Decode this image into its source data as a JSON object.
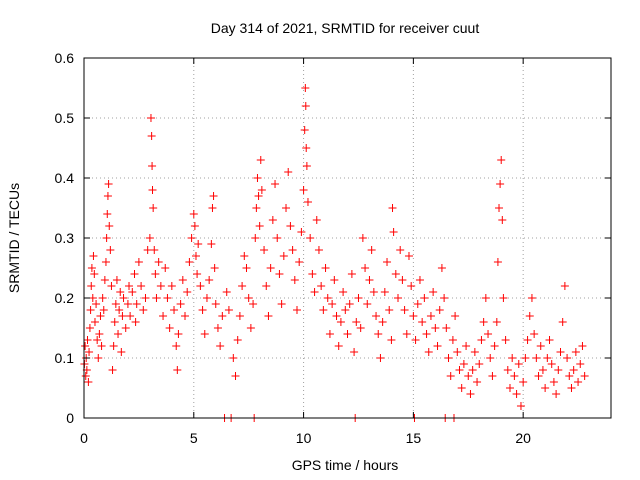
{
  "chart_data": {
    "type": "scatter",
    "title": "Day 314 of 2021, SRMTID for receiver cuut",
    "xlabel": "GPS time / hours",
    "ylabel": "SRMTID / TECUs",
    "xlim": [
      0,
      24
    ],
    "ylim": [
      0,
      0.6
    ],
    "xticks": [
      0,
      5,
      10,
      15,
      20
    ],
    "yticks": [
      0,
      0.1,
      0.2,
      0.3,
      0.4,
      0.5,
      0.6
    ],
    "xtick_labels": [
      "0",
      "5",
      "10",
      "15",
      "20"
    ],
    "ytick_labels": [
      "0",
      "0.1",
      "0.2",
      "0.3",
      "0.4",
      "0.5",
      "0.6"
    ],
    "grid": true,
    "marker": "+",
    "series_color": "#ff0000",
    "series": [
      {
        "name": "SRMTID",
        "points": [
          [
            0.02,
            0.09
          ],
          [
            0.05,
            0.12
          ],
          [
            0.08,
            0.07
          ],
          [
            0.1,
            0.1
          ],
          [
            0.13,
            0.08
          ],
          [
            0.16,
            0.13
          ],
          [
            0.2,
            0.06
          ],
          [
            0.23,
            0.11
          ],
          [
            0.27,
            0.15
          ],
          [
            0.3,
            0.18
          ],
          [
            0.33,
            0.22
          ],
          [
            0.36,
            0.25
          ],
          [
            0.4,
            0.2
          ],
          [
            0.43,
            0.27
          ],
          [
            0.47,
            0.24
          ],
          [
            0.5,
            0.16
          ],
          [
            0.55,
            0.19
          ],
          [
            0.6,
            0.13
          ],
          [
            0.65,
            0.1
          ],
          [
            0.7,
            0.14
          ],
          [
            0.75,
            0.17
          ],
          [
            0.8,
            0.12
          ],
          [
            0.85,
            0.2
          ],
          [
            0.9,
            0.18
          ],
          [
            0.95,
            0.23
          ],
          [
            1.0,
            0.26
          ],
          [
            1.03,
            0.3
          ],
          [
            1.06,
            0.34
          ],
          [
            1.09,
            0.37
          ],
          [
            1.12,
            0.39
          ],
          [
            1.15,
            0.32
          ],
          [
            1.2,
            0.28
          ],
          [
            1.25,
            0.22
          ],
          [
            1.3,
            0.08
          ],
          [
            1.35,
            0.12
          ],
          [
            1.4,
            0.16
          ],
          [
            1.45,
            0.19
          ],
          [
            1.5,
            0.23
          ],
          [
            1.55,
            0.14
          ],
          [
            1.6,
            0.18
          ],
          [
            1.65,
            0.21
          ],
          [
            1.7,
            0.11
          ],
          [
            1.75,
            0.17
          ],
          [
            1.8,
            0.2
          ],
          [
            1.9,
            0.15
          ],
          [
            2.0,
            0.19
          ],
          [
            2.05,
            0.22
          ],
          [
            2.1,
            0.17
          ],
          [
            2.2,
            0.21
          ],
          [
            2.3,
            0.24
          ],
          [
            2.35,
            0.16
          ],
          [
            2.4,
            0.19
          ],
          [
            2.5,
            0.26
          ],
          [
            2.6,
            0.22
          ],
          [
            2.7,
            0.18
          ],
          [
            2.8,
            0.2
          ],
          [
            2.9,
            0.28
          ],
          [
            3.0,
            0.3
          ],
          [
            3.05,
            0.5
          ],
          [
            3.08,
            0.47
          ],
          [
            3.1,
            0.42
          ],
          [
            3.12,
            0.38
          ],
          [
            3.15,
            0.35
          ],
          [
            3.2,
            0.28
          ],
          [
            3.25,
            0.24
          ],
          [
            3.3,
            0.2
          ],
          [
            3.4,
            0.26
          ],
          [
            3.5,
            0.22
          ],
          [
            3.6,
            0.17
          ],
          [
            3.7,
            0.25
          ],
          [
            3.8,
            0.2
          ],
          [
            3.9,
            0.15
          ],
          [
            4.0,
            0.22
          ],
          [
            4.1,
            0.18
          ],
          [
            4.2,
            0.12
          ],
          [
            4.25,
            0.08
          ],
          [
            4.3,
            0.14
          ],
          [
            4.4,
            0.19
          ],
          [
            4.5,
            0.23
          ],
          [
            4.6,
            0.17
          ],
          [
            4.7,
            0.21
          ],
          [
            4.8,
            0.26
          ],
          [
            4.9,
            0.3
          ],
          [
            5.0,
            0.34
          ],
          [
            5.05,
            0.32
          ],
          [
            5.1,
            0.27
          ],
          [
            5.15,
            0.24
          ],
          [
            5.2,
            0.29
          ],
          [
            5.3,
            0.22
          ],
          [
            5.4,
            0.18
          ],
          [
            5.5,
            0.14
          ],
          [
            5.6,
            0.2
          ],
          [
            5.7,
            0.23
          ],
          [
            5.8,
            0.29
          ],
          [
            5.85,
            0.35
          ],
          [
            5.9,
            0.37
          ],
          [
            5.95,
            0.25
          ],
          [
            6.0,
            0.19
          ],
          [
            6.1,
            0.15
          ],
          [
            6.2,
            0.12
          ],
          [
            6.3,
            0.17
          ],
          [
            6.4,
            0.0
          ],
          [
            6.5,
            0.21
          ],
          [
            6.6,
            0.18
          ],
          [
            6.7,
            0.0
          ],
          [
            6.8,
            0.1
          ],
          [
            6.9,
            0.07
          ],
          [
            7.0,
            0.13
          ],
          [
            7.1,
            0.17
          ],
          [
            7.2,
            0.22
          ],
          [
            7.3,
            0.27
          ],
          [
            7.4,
            0.25
          ],
          [
            7.5,
            0.2
          ],
          [
            7.6,
            0.15
          ],
          [
            7.7,
            0.19
          ],
          [
            7.75,
            0.0
          ],
          [
            7.8,
            0.3
          ],
          [
            7.85,
            0.35
          ],
          [
            7.9,
            0.4
          ],
          [
            7.95,
            0.37
          ],
          [
            8.0,
            0.32
          ],
          [
            8.05,
            0.43
          ],
          [
            8.1,
            0.38
          ],
          [
            8.2,
            0.28
          ],
          [
            8.3,
            0.22
          ],
          [
            8.4,
            0.17
          ],
          [
            8.5,
            0.25
          ],
          [
            8.6,
            0.33
          ],
          [
            8.7,
            0.39
          ],
          [
            8.8,
            0.3
          ],
          [
            8.9,
            0.24
          ],
          [
            9.0,
            0.19
          ],
          [
            9.1,
            0.27
          ],
          [
            9.2,
            0.35
          ],
          [
            9.3,
            0.41
          ],
          [
            9.4,
            0.32
          ],
          [
            9.5,
            0.28
          ],
          [
            9.6,
            0.23
          ],
          [
            9.7,
            0.18
          ],
          [
            9.8,
            0.26
          ],
          [
            9.9,
            0.31
          ],
          [
            10.0,
            0.38
          ],
          [
            10.05,
            0.48
          ],
          [
            10.08,
            0.55
          ],
          [
            10.1,
            0.52
          ],
          [
            10.12,
            0.45
          ],
          [
            10.15,
            0.42
          ],
          [
            10.2,
            0.36
          ],
          [
            10.3,
            0.3
          ],
          [
            10.4,
            0.24
          ],
          [
            10.5,
            0.21
          ],
          [
            10.6,
            0.33
          ],
          [
            10.7,
            0.28
          ],
          [
            10.8,
            0.22
          ],
          [
            10.9,
            0.18
          ],
          [
            11.0,
            0.25
          ],
          [
            11.1,
            0.2
          ],
          [
            11.2,
            0.14
          ],
          [
            11.3,
            0.19
          ],
          [
            11.4,
            0.23
          ],
          [
            11.5,
            0.17
          ],
          [
            11.6,
            0.12
          ],
          [
            11.7,
            0.16
          ],
          [
            11.8,
            0.21
          ],
          [
            11.9,
            0.18
          ],
          [
            12.0,
            0.14
          ],
          [
            12.1,
            0.19
          ],
          [
            12.2,
            0.24
          ],
          [
            12.3,
            0.11
          ],
          [
            12.35,
            0.0
          ],
          [
            12.4,
            0.16
          ],
          [
            12.5,
            0.2
          ],
          [
            12.6,
            0.15
          ],
          [
            12.7,
            0.3
          ],
          [
            12.8,
            0.25
          ],
          [
            12.9,
            0.19
          ],
          [
            13.0,
            0.23
          ],
          [
            13.1,
            0.28
          ],
          [
            13.2,
            0.21
          ],
          [
            13.3,
            0.17
          ],
          [
            13.4,
            0.14
          ],
          [
            13.5,
            0.1
          ],
          [
            13.6,
            0.16
          ],
          [
            13.7,
            0.21
          ],
          [
            13.8,
            0.26
          ],
          [
            13.9,
            0.18
          ],
          [
            14.0,
            0.13
          ],
          [
            14.05,
            0.35
          ],
          [
            14.1,
            0.31
          ],
          [
            14.2,
            0.24
          ],
          [
            14.3,
            0.2
          ],
          [
            14.4,
            0.28
          ],
          [
            14.5,
            0.23
          ],
          [
            14.6,
            0.18
          ],
          [
            14.7,
            0.14
          ],
          [
            14.8,
            0.27
          ],
          [
            14.9,
            0.22
          ],
          [
            15.0,
            0.17
          ],
          [
            15.05,
            0.0
          ],
          [
            15.1,
            0.13
          ],
          [
            15.2,
            0.19
          ],
          [
            15.3,
            0.23
          ],
          [
            15.4,
            0.16
          ],
          [
            15.5,
            0.2
          ],
          [
            15.6,
            0.14
          ],
          [
            15.7,
            0.11
          ],
          [
            15.8,
            0.17
          ],
          [
            15.9,
            0.21
          ],
          [
            16.0,
            0.15
          ],
          [
            16.1,
            0.12
          ],
          [
            16.2,
            0.18
          ],
          [
            16.3,
            0.25
          ],
          [
            16.4,
            0.2
          ],
          [
            16.45,
            0.0
          ],
          [
            16.5,
            0.15
          ],
          [
            16.6,
            0.1
          ],
          [
            16.7,
            0.07
          ],
          [
            16.8,
            0.13
          ],
          [
            16.85,
            0.0
          ],
          [
            16.9,
            0.17
          ],
          [
            17.0,
            0.11
          ],
          [
            17.1,
            0.08
          ],
          [
            17.2,
            0.05
          ],
          [
            17.3,
            0.09
          ],
          [
            17.4,
            0.12
          ],
          [
            17.5,
            0.07
          ],
          [
            17.6,
            0.04
          ],
          [
            17.7,
            0.08
          ],
          [
            17.8,
            0.11
          ],
          [
            17.9,
            0.06
          ],
          [
            18.0,
            0.09
          ],
          [
            18.1,
            0.13
          ],
          [
            18.2,
            0.16
          ],
          [
            18.3,
            0.2
          ],
          [
            18.4,
            0.14
          ],
          [
            18.5,
            0.1
          ],
          [
            18.6,
            0.07
          ],
          [
            18.7,
            0.12
          ],
          [
            18.8,
            0.16
          ],
          [
            18.85,
            0.26
          ],
          [
            18.9,
            0.35
          ],
          [
            18.95,
            0.39
          ],
          [
            19.0,
            0.43
          ],
          [
            19.05,
            0.33
          ],
          [
            19.1,
            0.2
          ],
          [
            19.2,
            0.13
          ],
          [
            19.3,
            0.08
          ],
          [
            19.4,
            0.05
          ],
          [
            19.5,
            0.1
          ],
          [
            19.6,
            0.07
          ],
          [
            19.7,
            0.04
          ],
          [
            19.8,
            0.09
          ],
          [
            19.9,
            0.02
          ],
          [
            20.0,
            0.06
          ],
          [
            20.1,
            0.1
          ],
          [
            20.2,
            0.13
          ],
          [
            20.3,
            0.17
          ],
          [
            20.4,
            0.2
          ],
          [
            20.5,
            0.14
          ],
          [
            20.6,
            0.1
          ],
          [
            20.7,
            0.07
          ],
          [
            20.8,
            0.12
          ],
          [
            20.9,
            0.08
          ],
          [
            21.0,
            0.05
          ],
          [
            21.1,
            0.1
          ],
          [
            21.2,
            0.13
          ],
          [
            21.3,
            0.09
          ],
          [
            21.4,
            0.06
          ],
          [
            21.5,
            0.04
          ],
          [
            21.6,
            0.08
          ],
          [
            21.7,
            0.11
          ],
          [
            21.8,
            0.16
          ],
          [
            21.9,
            0.22
          ],
          [
            22.0,
            0.1
          ],
          [
            22.1,
            0.07
          ],
          [
            22.2,
            0.05
          ],
          [
            22.3,
            0.08
          ],
          [
            22.4,
            0.11
          ],
          [
            22.5,
            0.06
          ],
          [
            22.6,
            0.09
          ],
          [
            22.7,
            0.12
          ],
          [
            22.8,
            0.07
          ]
        ]
      }
    ]
  }
}
